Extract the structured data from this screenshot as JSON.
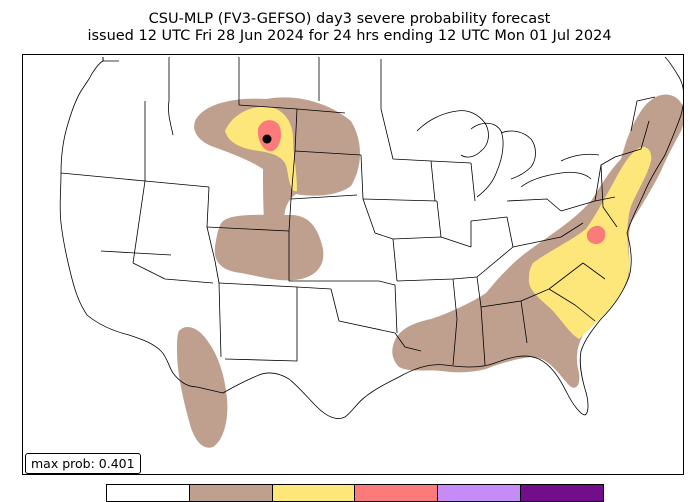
{
  "title_line1": "CSU-MLP (FV3-GEFSO) day3 severe probability forecast",
  "title_line2": "issued 12 UTC Fri 28 Jun 2024 for 24 hrs ending 12 UTC Mon 01 Jul 2024",
  "max_prob_text": "max prob: 0.401",
  "colors": {
    "level_5": "#bfa08f",
    "level_15": "#fde77a",
    "level_30": "#fb7b7b",
    "level_45": "#c58cf7",
    "level_60": "#720e8a",
    "boundary": "#000000",
    "map_background": "#ffffff"
  },
  "colorbar_levels": [
    {
      "level": "none",
      "color": "#ffffff"
    },
    {
      "level": "5",
      "color": "#bfa08f"
    },
    {
      "level": "15",
      "color": "#fde77a"
    },
    {
      "level": "30",
      "color": "#fb7b7b"
    },
    {
      "level": "45",
      "color": "#c58cf7"
    },
    {
      "level": "60",
      "color": "#720e8a"
    }
  ],
  "significant_marker": "black-dot"
}
